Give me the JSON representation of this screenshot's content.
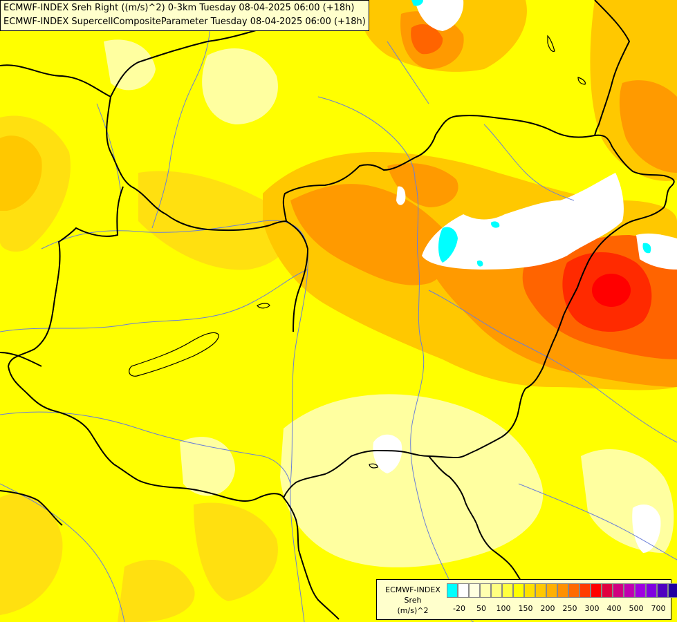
{
  "header": {
    "line1": "ECMWF-INDEX Sreh Right ((m/s)^2) 0-3km Tuesday 08-04-2025 06:00 (+18h)",
    "line2": "ECMWF-INDEX SupercellCompositeParameter Tuesday 08-04-2025 06:00 (+18h)"
  },
  "legend": {
    "line1": "ECMWF-INDEX",
    "line2": "Sreh",
    "line3": "(m/s)^2",
    "colors": [
      "#00ffff",
      "#ffffff",
      "#ffffe0",
      "#ffffb0",
      "#ffff80",
      "#ffff40",
      "#ffff00",
      "#ffe000",
      "#ffc800",
      "#ffb000",
      "#ff9000",
      "#ff6a00",
      "#ff3c00",
      "#ff0000",
      "#e00040",
      "#d00080",
      "#c000b0",
      "#a000e0",
      "#8000e0",
      "#5000c0",
      "#2000a0",
      "#000080"
    ],
    "ticks": [
      "-20",
      "50",
      "100",
      "150",
      "200",
      "250",
      "300",
      "400",
      "500",
      "700"
    ]
  },
  "map_colors": {
    "base": "#ffff00",
    "pale": "#ffffa0",
    "light_orange": "#ffd200",
    "orange": "#ffb400",
    "deep_orange": "#ff8c00",
    "red_orange": "#ff5000",
    "red": "#ff1a00",
    "cyan": "#00ffff",
    "border": "#000000",
    "river": "#6a7fd8"
  }
}
